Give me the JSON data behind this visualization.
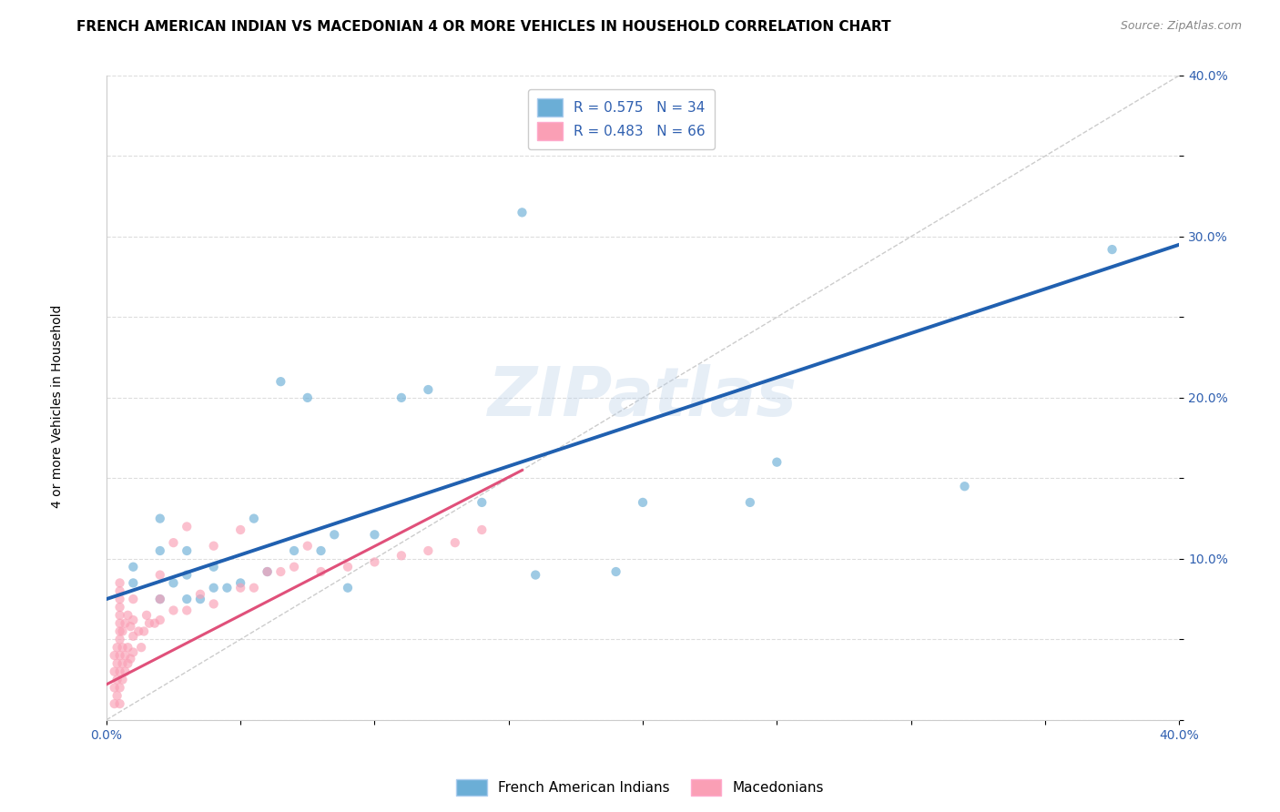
{
  "title": "FRENCH AMERICAN INDIAN VS MACEDONIAN 4 OR MORE VEHICLES IN HOUSEHOLD CORRELATION CHART",
  "source": "Source: ZipAtlas.com",
  "ylabel": "4 or more Vehicles in Household",
  "xlim": [
    0.0,
    0.4
  ],
  "ylim": [
    0.0,
    0.4
  ],
  "xticks": [
    0.0,
    0.05,
    0.1,
    0.15,
    0.2,
    0.25,
    0.3,
    0.35,
    0.4
  ],
  "yticks": [
    0.0,
    0.05,
    0.1,
    0.15,
    0.2,
    0.25,
    0.3,
    0.35,
    0.4
  ],
  "blue_color": "#6baed6",
  "pink_color": "#fa9fb5",
  "blue_line_color": "#2060b0",
  "pink_line_color": "#e0507a",
  "legend_r_blue": "R = 0.575",
  "legend_n_blue": "N = 34",
  "legend_r_pink": "R = 0.483",
  "legend_n_pink": "N = 66",
  "legend_label_blue": "French American Indians",
  "legend_label_pink": "Macedonians",
  "watermark": "ZIPatlas",
  "blue_scatter_x": [
    0.01,
    0.01,
    0.02,
    0.02,
    0.02,
    0.025,
    0.03,
    0.03,
    0.03,
    0.035,
    0.04,
    0.04,
    0.045,
    0.05,
    0.055,
    0.06,
    0.065,
    0.07,
    0.075,
    0.08,
    0.085,
    0.09,
    0.1,
    0.11,
    0.12,
    0.14,
    0.155,
    0.16,
    0.19,
    0.2,
    0.24,
    0.25,
    0.32,
    0.375
  ],
  "blue_scatter_y": [
    0.085,
    0.095,
    0.075,
    0.105,
    0.125,
    0.085,
    0.075,
    0.09,
    0.105,
    0.075,
    0.082,
    0.095,
    0.082,
    0.085,
    0.125,
    0.092,
    0.21,
    0.105,
    0.2,
    0.105,
    0.115,
    0.082,
    0.115,
    0.2,
    0.205,
    0.135,
    0.315,
    0.09,
    0.092,
    0.135,
    0.135,
    0.16,
    0.145,
    0.292
  ],
  "pink_scatter_x": [
    0.003,
    0.003,
    0.003,
    0.003,
    0.004,
    0.004,
    0.004,
    0.004,
    0.005,
    0.005,
    0.005,
    0.005,
    0.005,
    0.005,
    0.005,
    0.005,
    0.005,
    0.005,
    0.005,
    0.005,
    0.006,
    0.006,
    0.006,
    0.006,
    0.007,
    0.007,
    0.007,
    0.008,
    0.008,
    0.008,
    0.009,
    0.009,
    0.01,
    0.01,
    0.01,
    0.01,
    0.012,
    0.013,
    0.014,
    0.015,
    0.016,
    0.018,
    0.02,
    0.02,
    0.02,
    0.025,
    0.025,
    0.03,
    0.03,
    0.035,
    0.04,
    0.04,
    0.05,
    0.05,
    0.055,
    0.06,
    0.065,
    0.07,
    0.075,
    0.08,
    0.09,
    0.1,
    0.11,
    0.12,
    0.13,
    0.14
  ],
  "pink_scatter_y": [
    0.01,
    0.02,
    0.03,
    0.04,
    0.015,
    0.025,
    0.035,
    0.045,
    0.01,
    0.02,
    0.03,
    0.04,
    0.05,
    0.055,
    0.06,
    0.065,
    0.07,
    0.075,
    0.08,
    0.085,
    0.025,
    0.035,
    0.045,
    0.055,
    0.03,
    0.04,
    0.06,
    0.035,
    0.045,
    0.065,
    0.038,
    0.058,
    0.042,
    0.052,
    0.062,
    0.075,
    0.055,
    0.045,
    0.055,
    0.065,
    0.06,
    0.06,
    0.062,
    0.075,
    0.09,
    0.068,
    0.11,
    0.068,
    0.12,
    0.078,
    0.072,
    0.108,
    0.082,
    0.118,
    0.082,
    0.092,
    0.092,
    0.095,
    0.108,
    0.092,
    0.095,
    0.098,
    0.102,
    0.105,
    0.11,
    0.118
  ],
  "blue_line": [
    [
      0.0,
      0.075
    ],
    [
      0.4,
      0.295
    ]
  ],
  "pink_line": [
    [
      0.0,
      0.022
    ],
    [
      0.155,
      0.155
    ]
  ],
  "ref_line": [
    [
      0.0,
      0.0
    ],
    [
      0.4,
      0.4
    ]
  ],
  "title_fontsize": 11,
  "axis_label_fontsize": 10,
  "tick_fontsize": 10,
  "legend_fontsize": 11,
  "source_fontsize": 9,
  "scatter_size": 55,
  "scatter_alpha": 0.65,
  "tick_color": "#3060b0"
}
